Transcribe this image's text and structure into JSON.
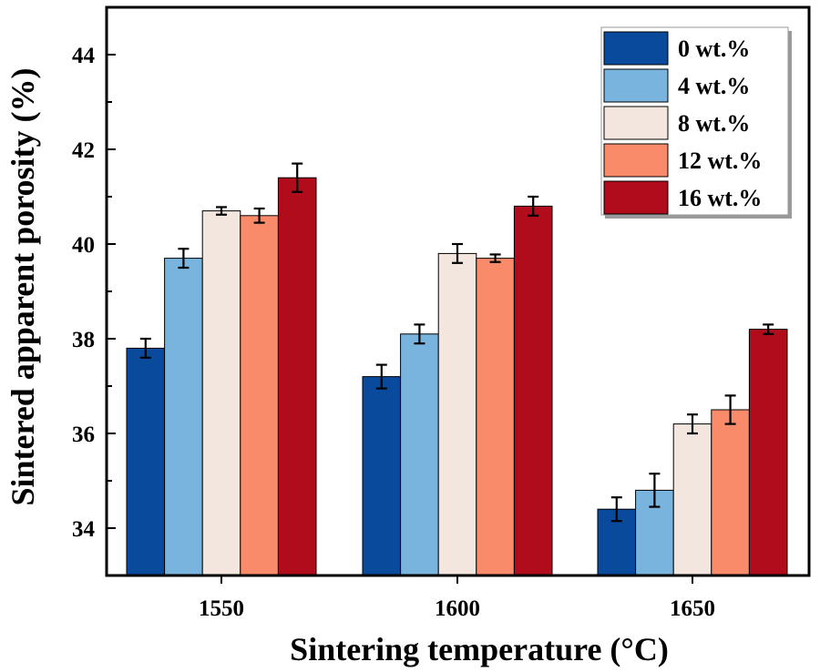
{
  "chart_data": {
    "type": "bar",
    "title": "",
    "xlabel": "Sintering temperature (°C)",
    "ylabel": "Sintered apparent porosity (%)",
    "ylim": [
      33,
      45
    ],
    "yticks": [
      34,
      36,
      38,
      40,
      42,
      44
    ],
    "categories": [
      "1550",
      "1600",
      "1650"
    ],
    "series": [
      {
        "name": "0 wt.%",
        "color": "#0a4a9c",
        "values": [
          37.8,
          37.2,
          34.4
        ],
        "errors": [
          0.2,
          0.25,
          0.25
        ]
      },
      {
        "name": "4 wt.%",
        "color": "#78b4de",
        "values": [
          39.7,
          38.1,
          34.8
        ],
        "errors": [
          0.2,
          0.2,
          0.35
        ]
      },
      {
        "name": "8 wt.%",
        "color": "#f2e6de",
        "values": [
          40.7,
          39.8,
          36.2
        ],
        "errors": [
          0.08,
          0.2,
          0.2
        ]
      },
      {
        "name": "12 wt.%",
        "color": "#f98a6a",
        "values": [
          40.6,
          39.7,
          36.5
        ],
        "errors": [
          0.15,
          0.08,
          0.3
        ]
      },
      {
        "name": "16 wt.%",
        "color": "#b00c1c",
        "values": [
          41.4,
          40.8,
          38.2
        ],
        "errors": [
          0.3,
          0.2,
          0.1
        ]
      }
    ],
    "legend_position": "top-right",
    "grid": false
  }
}
